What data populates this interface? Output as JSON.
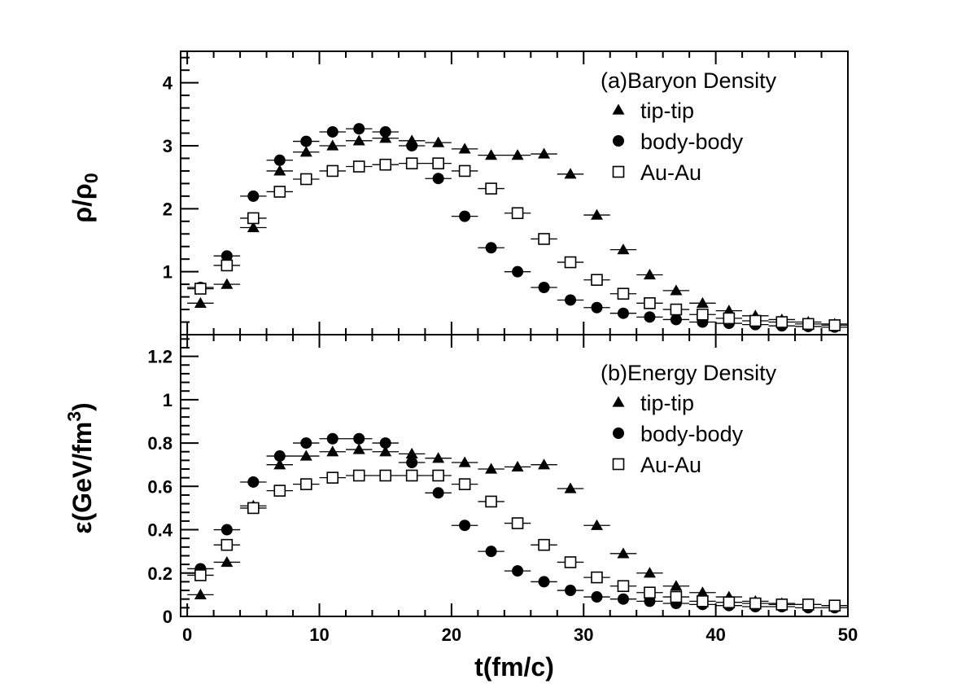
{
  "chart_data": [
    {
      "type": "scatter",
      "panel_label": "(a)Baryon Density",
      "xlabel": "t(fm/c)",
      "ylabel_main": "ρ/ρ",
      "ylabel_sub": "0",
      "xlim": [
        -0.5,
        50
      ],
      "ylim": [
        0,
        4.5
      ],
      "x_ticks": [
        0,
        10,
        20,
        30,
        40,
        50
      ],
      "x_tick_labels": [
        "0",
        "10",
        "20",
        "30",
        "40",
        "50"
      ],
      "y_ticks": [
        1,
        2,
        3,
        4
      ],
      "y_tick_labels": [
        "1",
        "2",
        "3",
        "4"
      ],
      "grid": false,
      "legend_position": "top-right",
      "x_half_width": 1,
      "series": [
        {
          "name": "tip-tip",
          "marker": "triangle",
          "x": [
            1,
            3,
            5,
            7,
            9,
            11,
            13,
            15,
            17,
            19,
            21,
            23,
            25,
            27,
            29,
            31,
            33,
            35,
            37,
            39,
            41,
            43,
            45,
            47,
            49
          ],
          "y": [
            0.5,
            0.8,
            1.7,
            2.6,
            2.9,
            3.0,
            3.08,
            3.12,
            3.08,
            3.05,
            2.95,
            2.85,
            2.85,
            2.87,
            2.55,
            1.9,
            1.35,
            0.95,
            0.7,
            0.5,
            0.38,
            0.3,
            0.24,
            0.2,
            0.17
          ]
        },
        {
          "name": "body-body",
          "marker": "circle",
          "x": [
            1,
            3,
            5,
            7,
            9,
            11,
            13,
            15,
            17,
            19,
            21,
            23,
            25,
            27,
            29,
            31,
            33,
            35,
            37,
            39,
            41,
            43,
            45,
            47,
            49
          ],
          "y": [
            0.75,
            1.25,
            2.2,
            2.77,
            3.07,
            3.22,
            3.27,
            3.22,
            3.0,
            2.48,
            1.88,
            1.38,
            1.0,
            0.75,
            0.55,
            0.43,
            0.34,
            0.28,
            0.24,
            0.2,
            0.18,
            0.16,
            0.14,
            0.13,
            0.12
          ]
        },
        {
          "name": "Au-Au",
          "marker": "open-square",
          "x": [
            1,
            3,
            5,
            7,
            9,
            11,
            13,
            15,
            17,
            19,
            21,
            23,
            25,
            27,
            29,
            31,
            33,
            35,
            37,
            39,
            41,
            43,
            45,
            47,
            49
          ],
          "y": [
            0.73,
            1.1,
            1.85,
            2.27,
            2.47,
            2.6,
            2.67,
            2.7,
            2.72,
            2.72,
            2.6,
            2.32,
            1.93,
            1.52,
            1.15,
            0.87,
            0.65,
            0.5,
            0.4,
            0.32,
            0.26,
            0.22,
            0.2,
            0.17,
            0.15
          ]
        }
      ]
    },
    {
      "type": "scatter",
      "panel_label": "(b)Energy Density",
      "xlabel": "t(fm/c)",
      "ylabel_main": "ε(GeV/fm",
      "ylabel_sup": "3",
      "ylabel_close": ")",
      "xlim": [
        -0.5,
        50
      ],
      "ylim": [
        0,
        1.3
      ],
      "x_ticks": [
        0,
        10,
        20,
        30,
        40,
        50
      ],
      "x_tick_labels": [
        "0",
        "10",
        "20",
        "30",
        "40",
        "50"
      ],
      "y_ticks": [
        0,
        0.2,
        0.4,
        0.6,
        0.8,
        1,
        1.2
      ],
      "y_tick_labels": [
        "0",
        "0.2",
        "0.4",
        "0.6",
        "0.8",
        "1",
        "1.2"
      ],
      "grid": false,
      "legend_position": "top-right",
      "x_half_width": 1,
      "series": [
        {
          "name": "tip-tip",
          "marker": "triangle",
          "x": [
            1,
            3,
            5,
            7,
            9,
            11,
            13,
            15,
            17,
            19,
            21,
            23,
            25,
            27,
            29,
            31,
            33,
            35,
            37,
            39,
            41,
            43,
            45,
            47,
            49
          ],
          "y": [
            0.1,
            0.25,
            0.51,
            0.7,
            0.74,
            0.76,
            0.77,
            0.76,
            0.75,
            0.73,
            0.71,
            0.68,
            0.69,
            0.7,
            0.59,
            0.42,
            0.29,
            0.2,
            0.14,
            0.11,
            0.09,
            0.07,
            0.06,
            0.055,
            0.05
          ]
        },
        {
          "name": "body-body",
          "marker": "circle",
          "x": [
            1,
            3,
            5,
            7,
            9,
            11,
            13,
            15,
            17,
            19,
            21,
            23,
            25,
            27,
            29,
            31,
            33,
            35,
            37,
            39,
            41,
            43,
            45,
            47,
            49
          ],
          "y": [
            0.22,
            0.4,
            0.62,
            0.74,
            0.8,
            0.82,
            0.82,
            0.8,
            0.71,
            0.57,
            0.42,
            0.3,
            0.21,
            0.16,
            0.12,
            0.09,
            0.08,
            0.07,
            0.06,
            0.055,
            0.05,
            0.045,
            0.045,
            0.04,
            0.04
          ]
        },
        {
          "name": "Au-Au",
          "marker": "open-square",
          "x": [
            1,
            3,
            5,
            7,
            9,
            11,
            13,
            15,
            17,
            19,
            21,
            23,
            25,
            27,
            29,
            31,
            33,
            35,
            37,
            39,
            41,
            43,
            45,
            47,
            49
          ],
          "y": [
            0.19,
            0.33,
            0.5,
            0.58,
            0.61,
            0.64,
            0.65,
            0.65,
            0.65,
            0.65,
            0.61,
            0.53,
            0.43,
            0.33,
            0.25,
            0.18,
            0.14,
            0.11,
            0.09,
            0.07,
            0.065,
            0.06,
            0.055,
            0.055,
            0.05
          ]
        }
      ]
    }
  ]
}
